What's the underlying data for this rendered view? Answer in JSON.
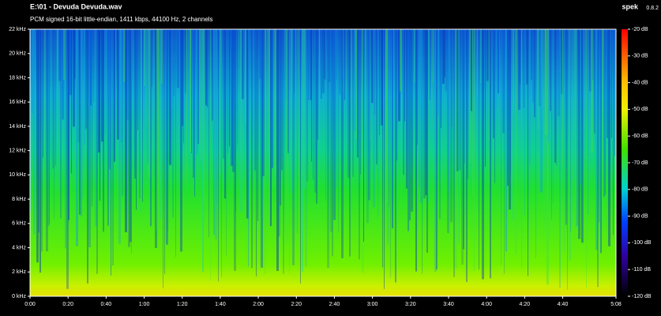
{
  "header": {
    "title": "E:\\01 - Devuda Devuda.wav",
    "subtitle": "PCM signed 16-bit little-endian, 1411 kbps, 44100 Hz, 2 channels",
    "app": "spek",
    "version": "0.8.2"
  },
  "chart_data": {
    "type": "spectrogram",
    "xlim": [
      0,
      308
    ],
    "xticks": [
      {
        "value": 0,
        "label": "0:00"
      },
      {
        "value": 20,
        "label": "0:20"
      },
      {
        "value": 40,
        "label": "0:40"
      },
      {
        "value": 60,
        "label": "1:00"
      },
      {
        "value": 80,
        "label": "1:20"
      },
      {
        "value": 100,
        "label": "1:40"
      },
      {
        "value": 120,
        "label": "2:00"
      },
      {
        "value": 140,
        "label": "2:20"
      },
      {
        "value": 160,
        "label": "2:40"
      },
      {
        "value": 180,
        "label": "3:00"
      },
      {
        "value": 200,
        "label": "3:20"
      },
      {
        "value": 220,
        "label": "3:40"
      },
      {
        "value": 240,
        "label": "4:00"
      },
      {
        "value": 260,
        "label": "4:20"
      },
      {
        "value": 280,
        "label": "4:40"
      },
      {
        "value": 308,
        "label": "5:08"
      }
    ],
    "ylim": [
      0,
      22
    ],
    "yticks": [
      {
        "value": 0,
        "label": "0 kHz"
      },
      {
        "value": 2,
        "label": "2 kHz"
      },
      {
        "value": 4,
        "label": "4 kHz"
      },
      {
        "value": 6,
        "label": "6 kHz"
      },
      {
        "value": 8,
        "label": "8 kHz"
      },
      {
        "value": 10,
        "label": "10 kHz"
      },
      {
        "value": 12,
        "label": "12 kHz"
      },
      {
        "value": 14,
        "label": "14 kHz"
      },
      {
        "value": 16,
        "label": "16 kHz"
      },
      {
        "value": 18,
        "label": "18 kHz"
      },
      {
        "value": 20,
        "label": "20 kHz"
      },
      {
        "value": 22,
        "label": "22 kHz"
      }
    ],
    "zlim": [
      -120,
      -20
    ],
    "zticks": [
      {
        "value": -20,
        "label": "-20 dB"
      },
      {
        "value": -30,
        "label": "-30 dB"
      },
      {
        "value": -40,
        "label": "-40 dB"
      },
      {
        "value": -50,
        "label": "-50 dB"
      },
      {
        "value": -60,
        "label": "-60 dB"
      },
      {
        "value": -70,
        "label": "-70 dB"
      },
      {
        "value": -80,
        "label": "-80 dB"
      },
      {
        "value": -90,
        "label": "-90 dB"
      },
      {
        "value": -100,
        "label": "-100 dB"
      },
      {
        "value": -110,
        "label": "-110 dB"
      },
      {
        "value": -120,
        "label": "-120 dB"
      }
    ]
  }
}
